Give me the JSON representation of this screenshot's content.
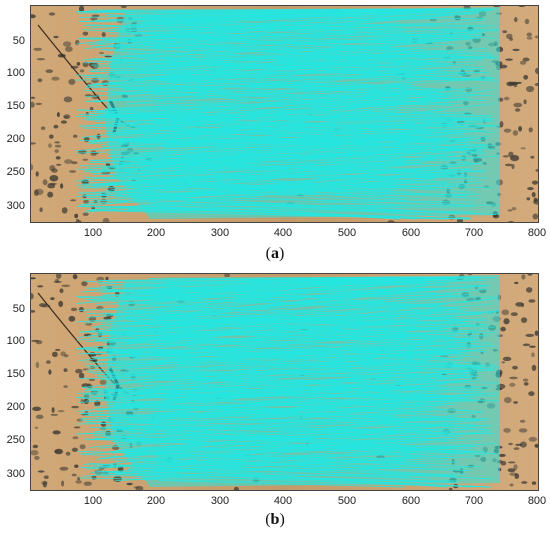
{
  "panels": [
    {
      "id": "a",
      "caption_open": "(",
      "caption_letter": "a",
      "caption_close": ")",
      "x_ticks": [
        "100",
        "200",
        "300",
        "400",
        "500",
        "600",
        "700",
        "800"
      ],
      "y_ticks": [
        "50",
        "100",
        "150",
        "200",
        "250",
        "300"
      ],
      "x_range": [
        0,
        800
      ],
      "y_range": [
        0,
        320
      ]
    },
    {
      "id": "b",
      "caption_open": "(",
      "caption_letter": "b",
      "caption_close": ")",
      "x_ticks": [
        "100",
        "200",
        "300",
        "400",
        "500",
        "600",
        "700",
        "800"
      ],
      "y_ticks": [
        "50",
        "100",
        "150",
        "200",
        "250",
        "300"
      ],
      "x_range": [
        0,
        800
      ],
      "y_range": [
        0,
        320
      ]
    }
  ],
  "colors": {
    "ground": "#c9a070",
    "ground_dark": "#a87b4f",
    "match_lines": "#26e6e0",
    "stones": "#3d3a33"
  }
}
